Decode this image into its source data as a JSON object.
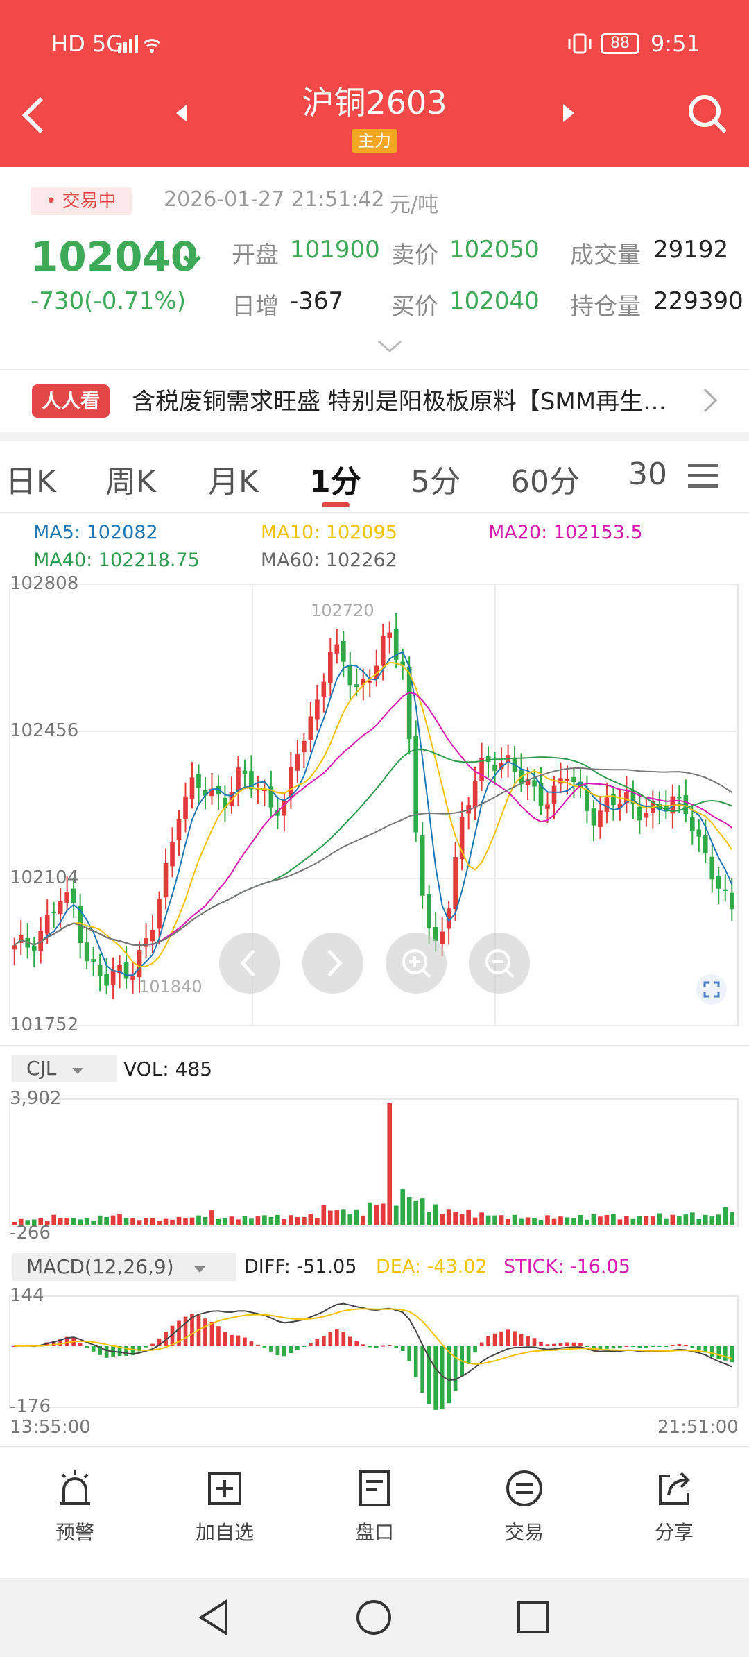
{
  "status_bar": {
    "network": "HD 5G",
    "battery": "88",
    "time": "9:51"
  },
  "header": {
    "title": "沪铜2603",
    "badge": "主力"
  },
  "quote": {
    "status": "• 交易中",
    "datetime": "2026-01-27 21:51:42",
    "unit": "元/吨",
    "price": "102040",
    "change": "-730(-0.71%)",
    "open_label": "开盘",
    "open_value": "101900",
    "daily_label": "日增",
    "daily_value": "-367",
    "ask_label": "卖价",
    "ask_value": "102050",
    "bid_label": "买价",
    "bid_value": "102040",
    "volume_label": "成交量",
    "volume_value": "29192",
    "oi_label": "持仓量",
    "oi_value": "229390"
  },
  "news": {
    "tag": "人人看",
    "text": "含税废铜需求旺盛 特别是阳极板原料【SMM再生…"
  },
  "tabs": [
    "日K",
    "周K",
    "月K",
    "1分",
    "5分",
    "60分",
    "30"
  ],
  "active_tab": "1分",
  "ma": {
    "ma5": "MA5: 102082",
    "ma10": "MA10: 102095",
    "ma20": "MA20: 102153.5",
    "ma40": "MA40: 102218.75",
    "ma60": "MA60: 102262"
  },
  "colors": {
    "ma5": "#1f77b4",
    "ma10": "#f2c200",
    "ma20": "#d81bb0",
    "ma40": "#2e9c4f",
    "ma60": "#777777",
    "up": "#e33b3b",
    "down": "#2eaa46"
  },
  "price_axis": {
    "max": "102808",
    "mid1": "102456",
    "mid2": "102104",
    "min": "101752",
    "high_mark": "102720",
    "low_mark": "101840"
  },
  "vol": {
    "selector": "CJL",
    "label": "VOL: 485",
    "max": "3,902",
    "min": "-266"
  },
  "macd": {
    "selector": "MACD(12,26,9)",
    "diff": "DIFF: -51.05",
    "dea": "DEA: -43.02",
    "stick": "STICK: -16.05",
    "max": "144",
    "min": "-176"
  },
  "time_axis": {
    "start": "13:55:00",
    "end": "21:51:00"
  },
  "bottom_nav": [
    {
      "label": "预警",
      "icon": "alarm-icon"
    },
    {
      "label": "加自选",
      "icon": "add-watchlist-icon"
    },
    {
      "label": "盘口",
      "icon": "order-book-icon"
    },
    {
      "label": "交易",
      "icon": "trade-icon"
    },
    {
      "label": "分享",
      "icon": "share-icon"
    }
  ],
  "chart_data": {
    "type": "candlestick",
    "title": "",
    "ylim": [
      101752,
      102808
    ],
    "x_range": [
      "13:55:00",
      "21:51:00"
    ],
    "close_approx": [
      101930,
      101950,
      101990,
      102050,
      102040,
      101900,
      101850,
      101880,
      101900,
      101950,
      102100,
      102280,
      102320,
      102310,
      102300,
      102340,
      102330,
      102300,
      102260,
      102420,
      102500,
      102640,
      102620,
      102560,
      102600,
      102680,
      102630,
      102150,
      101900,
      102050,
      102250,
      102350,
      102400,
      102380,
      102330,
      102310,
      102300,
      102350,
      102300,
      102250,
      102280,
      102300,
      102270,
      102250,
      102300,
      102280,
      102150,
      102100,
      102040
    ],
    "volume_approx": [
      160,
      170,
      180,
      260,
      200,
      190,
      250,
      300,
      180,
      200,
      160,
      220,
      250,
      380,
      200,
      230,
      240,
      280,
      260,
      250,
      300,
      500,
      420,
      380,
      600,
      3902,
      900,
      700,
      520,
      420,
      380,
      330,
      300,
      260,
      220,
      200,
      250,
      230,
      260,
      280,
      300,
      230,
      250,
      300,
      270,
      330,
      260,
      300,
      485
    ],
    "macd_range": [
      -176,
      144
    ],
    "macd_last": {
      "diff": -51.05,
      "dea": -43.02,
      "stick": -16.05
    }
  }
}
